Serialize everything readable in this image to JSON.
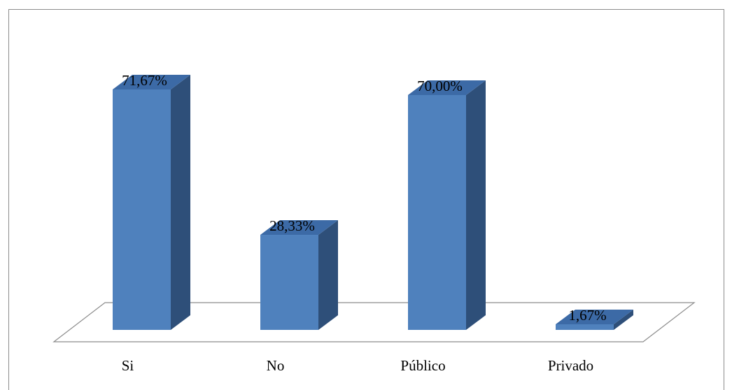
{
  "chart_data": {
    "type": "bar",
    "style": "3d-column",
    "categories": [
      "Si",
      "No",
      "Público",
      "Privado"
    ],
    "values": [
      71.67,
      28.33,
      70.0,
      1.67
    ],
    "data_labels": [
      "71,67%",
      "28,33%",
      "70,00%",
      "1,67%"
    ],
    "title": "",
    "xlabel": "",
    "ylabel": "",
    "ylim": [
      0,
      100
    ],
    "grid": false,
    "legend": "none",
    "colors": {
      "front": "#4f81bd",
      "side": "#2e4f79",
      "top": "#3c6aa6",
      "floor": "#ffffff",
      "floor_edge": "#8c8c8c"
    }
  }
}
